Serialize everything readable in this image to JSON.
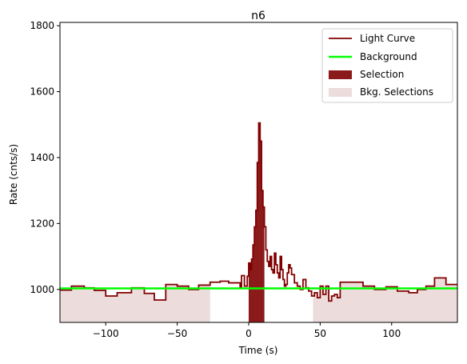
{
  "chart_data": {
    "type": "line",
    "title": "n6",
    "xlabel": "Time (s)",
    "ylabel": "Rate (cnts/s)",
    "xlim": [
      -132,
      146
    ],
    "ylim": [
      900,
      1810
    ],
    "x_ticks": [
      -100,
      -50,
      0,
      50,
      100
    ],
    "x_tick_labels": [
      "−100",
      "−50",
      "0",
      "50",
      "100"
    ],
    "y_ticks": [
      1000,
      1200,
      1400,
      1600,
      1800
    ],
    "y_tick_labels": [
      "1000",
      "1200",
      "1400",
      "1600",
      "1800"
    ],
    "grid": false,
    "legend": {
      "placement": "top-right",
      "entries": [
        "Light Curve",
        "Background",
        "Selection",
        "Bkg. Selections"
      ]
    },
    "colors": {
      "light_curve": "#800000",
      "background": "#00ff00",
      "selection": "#8b1a1a",
      "bkg_selections": "#ecdcdc"
    },
    "background_level": 1003,
    "bkg_selections": [
      [
        -132,
        -27
      ],
      [
        45,
        146
      ]
    ],
    "selection": [
      0,
      11
    ],
    "light_curve": [
      [
        -132,
        998
      ],
      [
        -124,
        1010
      ],
      [
        -115,
        1005
      ],
      [
        -108,
        997
      ],
      [
        -100,
        980
      ],
      [
        -92,
        990
      ],
      [
        -82,
        1005
      ],
      [
        -73,
        988
      ],
      [
        -66,
        968
      ],
      [
        -58,
        1015
      ],
      [
        -50,
        1010
      ],
      [
        -42,
        1000
      ],
      [
        -35,
        1013
      ],
      [
        -27,
        1022
      ],
      [
        -20,
        1025
      ],
      [
        -14,
        1020
      ],
      [
        -8,
        1020
      ],
      [
        -6,
        1005
      ],
      [
        -5,
        1042
      ],
      [
        -3,
        1010
      ],
      [
        -1,
        1040
      ],
      [
        0,
        1080
      ],
      [
        1,
        1060
      ],
      [
        2,
        1092
      ],
      [
        3,
        1135
      ],
      [
        4,
        1190
      ],
      [
        5,
        1240
      ],
      [
        6,
        1385
      ],
      [
        7,
        1505
      ],
      [
        8,
        1450
      ],
      [
        9,
        1300
      ],
      [
        10,
        1250
      ],
      [
        11,
        1190
      ],
      [
        12,
        1120
      ],
      [
        13,
        1085
      ],
      [
        14,
        1070
      ],
      [
        15,
        1100
      ],
      [
        16,
        1060
      ],
      [
        17,
        1050
      ],
      [
        18,
        1110
      ],
      [
        19,
        1075
      ],
      [
        20,
        1050
      ],
      [
        21,
        1035
      ],
      [
        22,
        1100
      ],
      [
        23,
        1060
      ],
      [
        24,
        1030
      ],
      [
        25,
        1010
      ],
      [
        26,
        1015
      ],
      [
        27,
        1050
      ],
      [
        28,
        1075
      ],
      [
        29,
        1065
      ],
      [
        30,
        1045
      ],
      [
        32,
        1020
      ],
      [
        34,
        1010
      ],
      [
        36,
        1000
      ],
      [
        38,
        1030
      ],
      [
        40,
        1005
      ],
      [
        42,
        995
      ],
      [
        44,
        980
      ],
      [
        46,
        990
      ],
      [
        48,
        975
      ],
      [
        50,
        1010
      ],
      [
        52,
        985
      ],
      [
        54,
        1010
      ],
      [
        56,
        965
      ],
      [
        58,
        980
      ],
      [
        60,
        985
      ],
      [
        62,
        975
      ],
      [
        64,
        1022
      ],
      [
        72,
        1022
      ],
      [
        80,
        1010
      ],
      [
        88,
        1000
      ],
      [
        96,
        1008
      ],
      [
        104,
        995
      ],
      [
        112,
        990
      ],
      [
        118,
        1000
      ],
      [
        124,
        1010
      ],
      [
        130,
        1035
      ],
      [
        138,
        1015
      ],
      [
        146,
        1015
      ]
    ]
  }
}
